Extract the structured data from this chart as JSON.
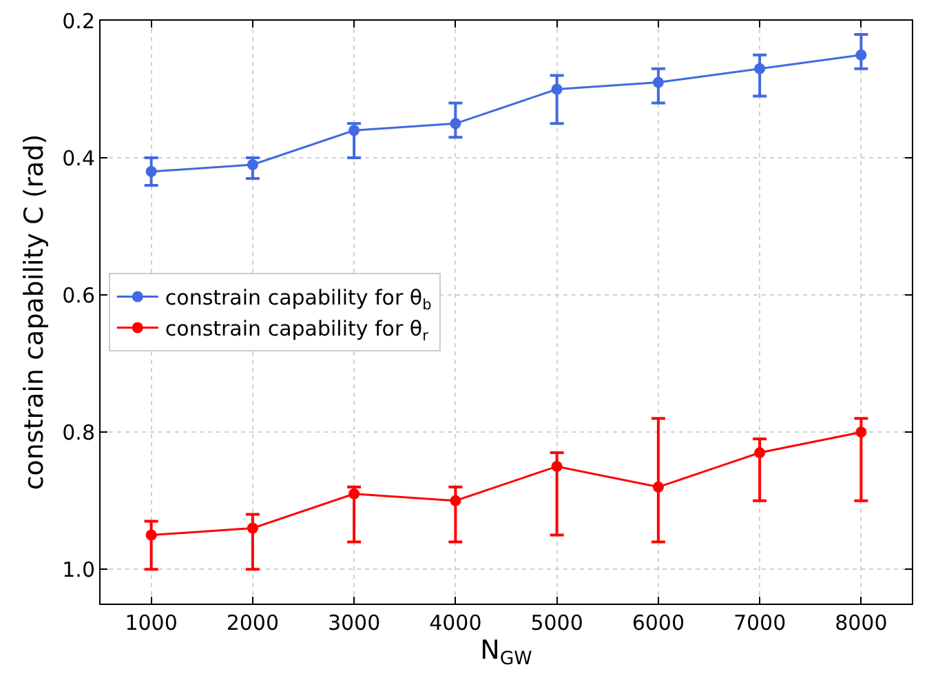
{
  "chart_data": {
    "type": "line",
    "xlabel": "N$_{GW}$",
    "ylabel": "constrain capability C (rad)",
    "x": [
      1000,
      2000,
      3000,
      4000,
      5000,
      6000,
      7000,
      8000
    ],
    "series": [
      {
        "name": "constrain capability for θ$_{b}$",
        "color": "#4169e1",
        "values": [
          0.42,
          0.41,
          0.36,
          0.35,
          0.3,
          0.29,
          0.27,
          0.25
        ],
        "errors": [
          [
            0.4,
            0.44
          ],
          [
            0.4,
            0.43
          ],
          [
            0.35,
            0.4
          ],
          [
            0.32,
            0.37
          ],
          [
            0.28,
            0.35
          ],
          [
            0.27,
            0.32
          ],
          [
            0.25,
            0.31
          ],
          [
            0.22,
            0.27
          ]
        ]
      },
      {
        "name": "constrain capability for θ$_{r}$",
        "color": "#ff0000",
        "values": [
          0.95,
          0.94,
          0.89,
          0.9,
          0.85,
          0.88,
          0.83,
          0.8
        ],
        "errors": [
          [
            0.93,
            1.0
          ],
          [
            0.92,
            1.0
          ],
          [
            0.88,
            0.96
          ],
          [
            0.88,
            0.96
          ],
          [
            0.83,
            0.95
          ],
          [
            0.78,
            0.96
          ],
          [
            0.81,
            0.9
          ],
          [
            0.78,
            0.9
          ]
        ]
      }
    ],
    "xlim": [
      500,
      8500
    ],
    "xticks": [
      1000,
      2000,
      3000,
      4000,
      5000,
      6000,
      7000,
      8000
    ],
    "ylim": [
      1.05,
      0.2
    ],
    "yticks": [
      0.2,
      0.4,
      0.6,
      0.8,
      {
        "value": 1,
        "label": "1.0"
      }
    ],
    "grid": true,
    "legend": "center left",
    "marker": "circle",
    "line_style": "solid"
  }
}
